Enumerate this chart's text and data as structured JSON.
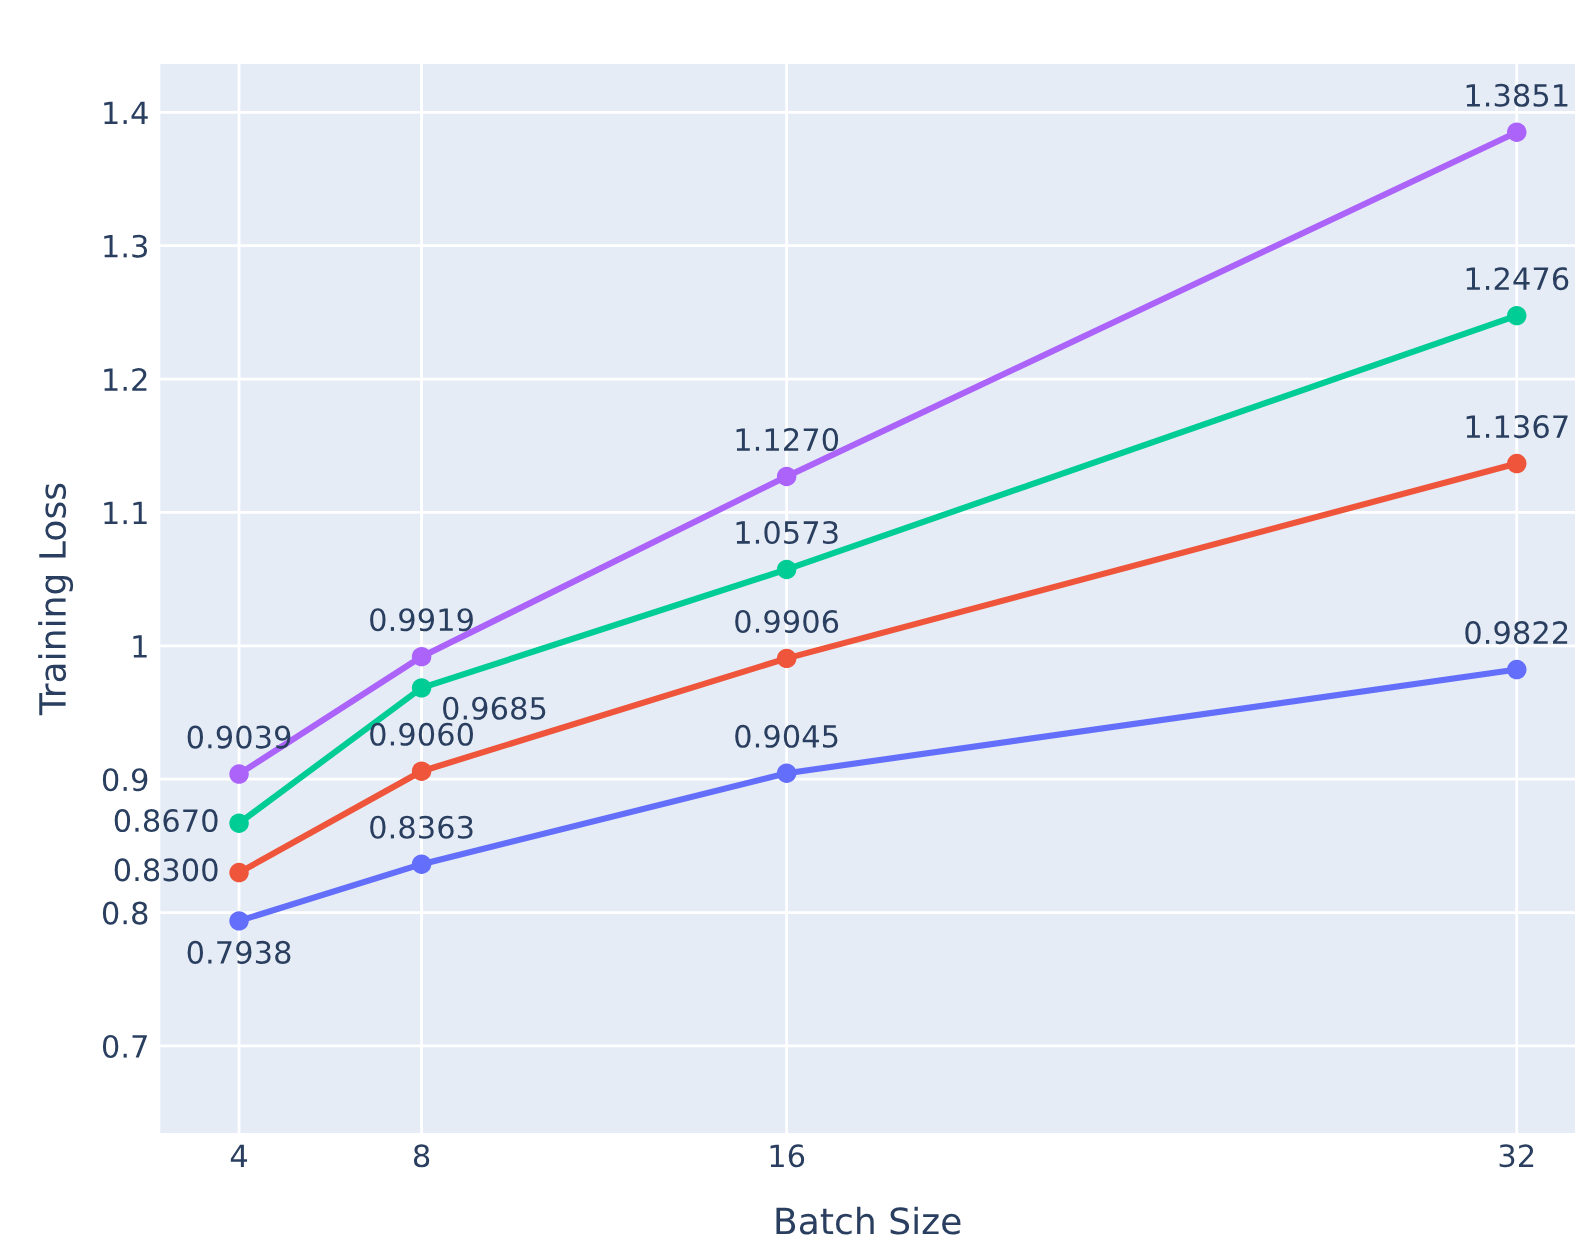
{
  "chart_data": {
    "type": "line",
    "xlabel": "Batch Size",
    "ylabel": "Training Loss",
    "x": [
      4,
      8,
      16,
      32
    ],
    "series": [
      {
        "color": "#636efa",
        "values": [
          0.7938,
          0.8363,
          0.9045,
          0.9822
        ],
        "value_labels": [
          "0.7938",
          "0.8363",
          "0.9045",
          "0.9822"
        ]
      },
      {
        "color": "#ef553b",
        "values": [
          0.83,
          0.906,
          0.9906,
          1.1367
        ],
        "value_labels": [
          "0.8300",
          "0.9060",
          "0.9906",
          "1.1367"
        ]
      },
      {
        "color": "#00cc96",
        "values": [
          0.867,
          0.9685,
          1.0573,
          1.2476
        ],
        "value_labels": [
          "0.8670",
          "0.9685",
          "1.0573",
          "1.2476"
        ]
      },
      {
        "color": "#ab63fa",
        "values": [
          0.9039,
          0.9919,
          1.127,
          1.3851
        ],
        "value_labels": [
          "0.9039",
          "0.9919",
          "1.1270",
          "1.3851"
        ]
      }
    ],
    "xlim": [
      2.25,
      33.3
    ],
    "xticks": [
      4,
      8,
      16,
      32
    ],
    "ylim": [
      0.634,
      1.437
    ],
    "yticks": [
      0.7,
      0.8,
      0.9,
      1,
      1.1,
      1.2,
      1.3,
      1.4
    ],
    "grid": true,
    "marker": "circle",
    "line_style": "solid"
  }
}
